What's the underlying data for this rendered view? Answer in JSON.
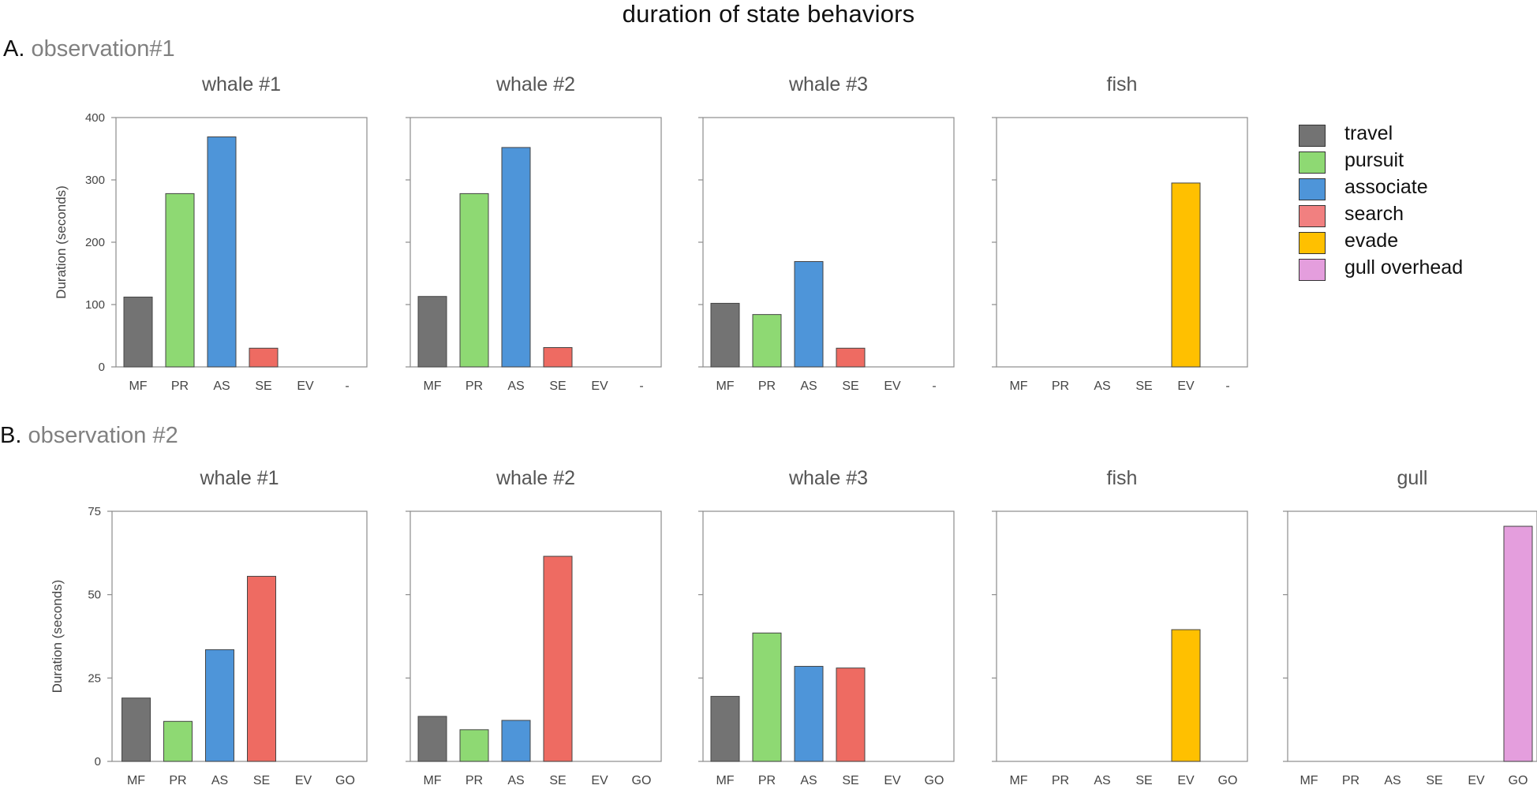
{
  "title": "duration of state behaviors",
  "sections": [
    {
      "letter": "A.",
      "label": "observation#1"
    },
    {
      "letter": "B.",
      "label": "observation #2"
    }
  ],
  "legend": [
    {
      "code": "MF",
      "label": "travel",
      "color": "#737373"
    },
    {
      "code": "PR",
      "label": "pursuit",
      "color": "#8ed973"
    },
    {
      "code": "AS",
      "label": "associate",
      "color": "#4e95d9"
    },
    {
      "code": "SE",
      "label": "search",
      "color": "#f18080"
    },
    {
      "code": "EV",
      "label": "evade",
      "color": "#ffc000"
    },
    {
      "code": "GO",
      "label": "gull overhead",
      "color": "#e49edd"
    }
  ],
  "colors": {
    "MF": "#737373",
    "PR": "#8ed973",
    "AS": "#4e95d9",
    "SE": "#ee6b62",
    "EV": "#ffc000",
    "GO": "#e49edd",
    "-": "#ffffff"
  },
  "chart_data": [
    {
      "type": "bar",
      "title": "whale #1",
      "section": "A",
      "ylabel": "Duration (seconds)",
      "ylim": [
        0,
        400
      ],
      "yticks": [
        0,
        100,
        200,
        300,
        400
      ],
      "categories": [
        "MF",
        "PR",
        "AS",
        "SE",
        "EV",
        "-"
      ],
      "values": [
        112,
        278,
        369,
        30,
        0,
        0
      ]
    },
    {
      "type": "bar",
      "title": "whale #2",
      "section": "A",
      "ylabel": "",
      "ylim": [
        0,
        400
      ],
      "yticks": [
        0,
        100,
        200,
        300,
        400
      ],
      "categories": [
        "MF",
        "PR",
        "AS",
        "SE",
        "EV",
        "-"
      ],
      "values": [
        113,
        278,
        352,
        31,
        0,
        0
      ]
    },
    {
      "type": "bar",
      "title": "whale #3",
      "section": "A",
      "ylabel": "",
      "ylim": [
        0,
        400
      ],
      "yticks": [
        0,
        100,
        200,
        300,
        400
      ],
      "categories": [
        "MF",
        "PR",
        "AS",
        "SE",
        "EV",
        "-"
      ],
      "values": [
        102,
        84,
        169,
        30,
        0,
        0
      ]
    },
    {
      "type": "bar",
      "title": "fish",
      "section": "A",
      "ylabel": "",
      "ylim": [
        0,
        400
      ],
      "yticks": [
        0,
        100,
        200,
        300,
        400
      ],
      "categories": [
        "MF",
        "PR",
        "AS",
        "SE",
        "EV",
        "-"
      ],
      "values": [
        0,
        0,
        0,
        0,
        295,
        0
      ]
    },
    {
      "type": "bar",
      "title": "whale #1",
      "section": "B",
      "ylabel": "Duration (seconds)",
      "ylim": [
        0,
        75
      ],
      "yticks": [
        0,
        25,
        50,
        75
      ],
      "categories": [
        "MF",
        "PR",
        "AS",
        "SE",
        "EV",
        "GO"
      ],
      "values": [
        19,
        12,
        33.5,
        55.5,
        0,
        0
      ]
    },
    {
      "type": "bar",
      "title": "whale #2",
      "section": "B",
      "ylabel": "",
      "ylim": [
        0,
        75
      ],
      "yticks": [
        0,
        25,
        50,
        75
      ],
      "categories": [
        "MF",
        "PR",
        "AS",
        "SE",
        "EV",
        "GO"
      ],
      "values": [
        13.5,
        9.5,
        12.3,
        61.5,
        0,
        0
      ]
    },
    {
      "type": "bar",
      "title": "whale #3",
      "section": "B",
      "ylabel": "",
      "ylim": [
        0,
        75
      ],
      "yticks": [
        0,
        25,
        50,
        75
      ],
      "categories": [
        "MF",
        "PR",
        "AS",
        "SE",
        "EV",
        "GO"
      ],
      "values": [
        19.5,
        38.5,
        28.5,
        28,
        0,
        0
      ]
    },
    {
      "type": "bar",
      "title": "fish",
      "section": "B",
      "ylabel": "",
      "ylim": [
        0,
        75
      ],
      "yticks": [
        0,
        25,
        50,
        75
      ],
      "categories": [
        "MF",
        "PR",
        "AS",
        "SE",
        "EV",
        "GO"
      ],
      "values": [
        0,
        0,
        0,
        0,
        39.5,
        0
      ]
    },
    {
      "type": "bar",
      "title": "gull",
      "section": "B",
      "ylabel": "",
      "ylim": [
        0,
        75
      ],
      "yticks": [
        0,
        25,
        50,
        75
      ],
      "categories": [
        "MF",
        "PR",
        "AS",
        "SE",
        "EV",
        "GO"
      ],
      "values": [
        0,
        0,
        0,
        0,
        0,
        70.5
      ]
    }
  ]
}
